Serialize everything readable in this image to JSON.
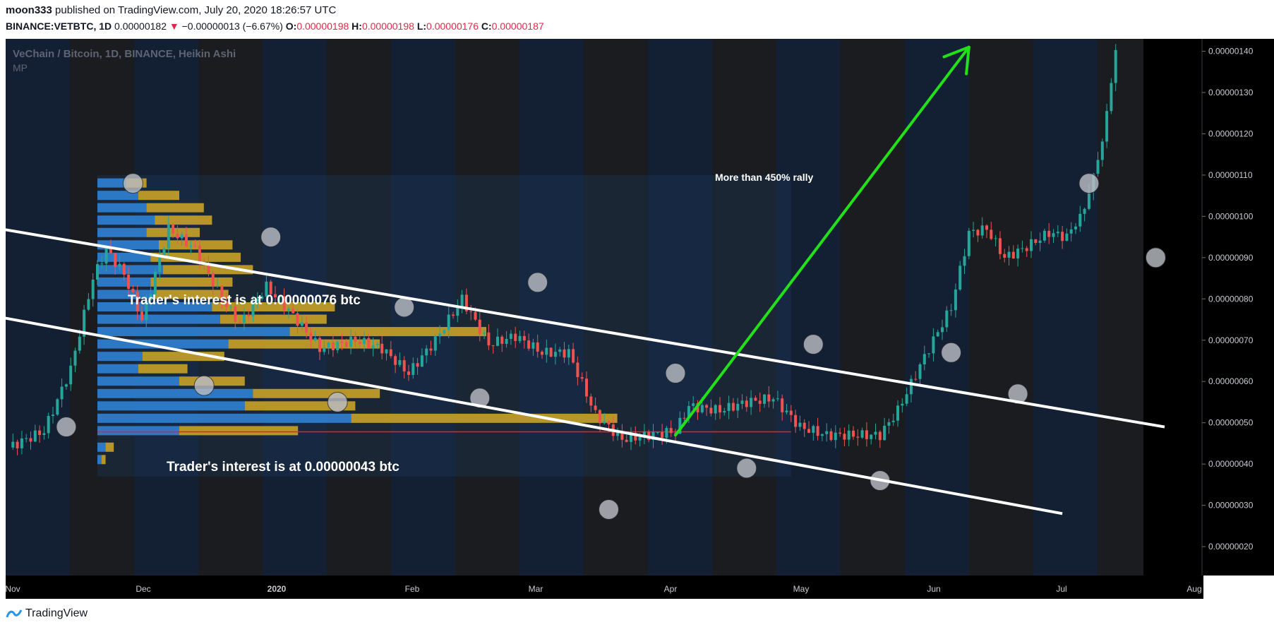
{
  "header": {
    "author": "moon333",
    "published_text": "published on TradingView.com, July 20, 2020 18:26:57 UTC",
    "symbol": "BINANCE:VETBTC, 1D",
    "last": "0.00000182",
    "change": "−0.00000013 (−6.67%)",
    "o_label": "O:",
    "o_value": "0.00000198",
    "h_label": "H:",
    "h_value": "0.00000198",
    "l_label": "L:",
    "l_value": "0.00000176",
    "c_label": "C:",
    "c_value": "0.00000187"
  },
  "chart_title": "VeChain / Bitcoin, 1D, BINANCE, Heikin Ashi",
  "indicator_label": "MP",
  "annotations": {
    "rally": "More than 450% rally",
    "upper_interest": "Trader's interest is at  0.00000076 btc",
    "lower_interest": "Trader's interest is at  0.00000043 btc"
  },
  "footer": {
    "brand": "TradingView"
  },
  "colors": {
    "up": "#26a69a",
    "down": "#ef5350",
    "arrow": "#22e01a",
    "poc_line": "#ff1a1a",
    "channel": "#ffffff",
    "bg": "#1b1c1f"
  },
  "chart_data": {
    "type": "candlestick",
    "title": "VeChain / Bitcoin, 1D, BINANCE, Heikin Ashi",
    "x_tick_labels": [
      "Nov",
      "Dec",
      "2020",
      "Feb",
      "Mar",
      "Apr",
      "May",
      "Jun",
      "Jul",
      "Aug"
    ],
    "y_tick_labels": [
      "0.00000140",
      "0.00000130",
      "0.00000120",
      "0.00000110",
      "0.00000100",
      "0.00000090",
      "0.00000080",
      "0.00000070",
      "0.00000060",
      "0.00000050",
      "0.00000040",
      "0.00000030",
      "0.00000020"
    ],
    "ylim": [
      1.3e-07,
      1.43e-06
    ],
    "price_path": [
      [
        0,
        4.4e-07
      ],
      [
        8,
        4.8e-07
      ],
      [
        14,
        6.3e-07
      ],
      [
        19,
        8.5e-07
      ],
      [
        22,
        9.2e-07
      ],
      [
        26,
        8.6e-07
      ],
      [
        30,
        7.5e-07
      ],
      [
        36,
        9.7e-07
      ],
      [
        42,
        9.2e-07
      ],
      [
        48,
        8e-07
      ],
      [
        52,
        7.4e-07
      ],
      [
        58,
        8.3e-07
      ],
      [
        64,
        7.6e-07
      ],
      [
        70,
        6.8e-07
      ],
      [
        78,
        7e-07
      ],
      [
        84,
        6.8e-07
      ],
      [
        90,
        6.2e-07
      ],
      [
        96,
        7e-07
      ],
      [
        102,
        8e-07
      ],
      [
        108,
        6.9e-07
      ],
      [
        114,
        7.1e-07
      ],
      [
        120,
        6.7e-07
      ],
      [
        126,
        6.7e-07
      ],
      [
        132,
        5.2e-07
      ],
      [
        138,
        4.6e-07
      ],
      [
        144,
        4.7e-07
      ],
      [
        150,
        4.8e-07
      ],
      [
        153,
        5.4e-07
      ],
      [
        160,
        5.3e-07
      ],
      [
        166,
        5.5e-07
      ],
      [
        172,
        5.6e-07
      ],
      [
        178,
        4.9e-07
      ],
      [
        184,
        4.7e-07
      ],
      [
        190,
        4.7e-07
      ],
      [
        196,
        4.7e-07
      ],
      [
        200,
        5.3e-07
      ],
      [
        206,
        6.6e-07
      ],
      [
        212,
        7.8e-07
      ],
      [
        216,
        9.6e-07
      ],
      [
        220,
        9.7e-07
      ],
      [
        224,
        9e-07
      ],
      [
        228,
        9.2e-07
      ],
      [
        234,
        9.6e-07
      ],
      [
        238,
        9.5e-07
      ],
      [
        242,
        1.02e-06
      ],
      [
        246,
        1.18e-06
      ],
      [
        249,
        1.4e-06
      ]
    ],
    "start_label": "Nov",
    "volume_profile_start_label": "Dec",
    "volume_profile_end_label": "Jun",
    "volume_profile_range": [
      3.7e-07,
      1.1e-06
    ],
    "volume_profile_rows": [
      [
        1.08e-06,
        0.07,
        0.05
      ],
      [
        1.05e-06,
        0.1,
        0.1
      ],
      [
        1.02e-06,
        0.12,
        0.14
      ],
      [
        9.9e-07,
        0.14,
        0.14
      ],
      [
        9.6e-07,
        0.12,
        0.13
      ],
      [
        9.3e-07,
        0.15,
        0.18
      ],
      [
        9e-07,
        0.13,
        0.22
      ],
      [
        8.7e-07,
        0.16,
        0.22
      ],
      [
        8.4e-07,
        0.13,
        0.2
      ],
      [
        8.1e-07,
        0.14,
        0.18
      ],
      [
        7.8e-07,
        0.28,
        0.3
      ],
      [
        7.5e-07,
        0.3,
        0.26
      ],
      [
        7.2e-07,
        0.47,
        0.48
      ],
      [
        6.9e-07,
        0.32,
        0.37
      ],
      [
        6.6e-07,
        0.11,
        0.2
      ],
      [
        6.3e-07,
        0.1,
        0.12
      ],
      [
        6e-07,
        0.2,
        0.16
      ],
      [
        5.7e-07,
        0.38,
        0.31
      ],
      [
        5.4e-07,
        0.36,
        0.27
      ],
      [
        5.1e-07,
        0.62,
        0.65
      ],
      [
        4.8e-07,
        0.2,
        0.29
      ],
      [
        4.4e-07,
        0.02,
        0.02
      ],
      [
        4.1e-07,
        0.01,
        0.01
      ]
    ],
    "poc_value": 4.78e-07,
    "channel_upper": {
      "from": [
        -2,
        9.7e-07
      ],
      "to": [
        260,
        4.9e-07
      ]
    },
    "channel_lower": {
      "from": [
        -4,
        7.6e-07
      ],
      "to": [
        237,
        2.8e-07
      ]
    },
    "rally_arrow": {
      "from": [
        150,
        4.7e-07
      ],
      "to": [
        216,
        1.41e-06
      ]
    },
    "markers": [
      [
        13,
        4.9e-07
      ],
      [
        28,
        1.08e-06
      ],
      [
        44,
        5.9e-07
      ],
      [
        59,
        9.5e-07
      ],
      [
        74,
        5.5e-07
      ],
      [
        89,
        7.8e-07
      ],
      [
        106,
        5.6e-07
      ],
      [
        119,
        8.4e-07
      ],
      [
        135,
        2.9e-07
      ],
      [
        150,
        6.2e-07
      ],
      [
        166,
        3.9e-07
      ],
      [
        181,
        6.9e-07
      ],
      [
        196,
        3.6e-07
      ],
      [
        212,
        6.7e-07
      ],
      [
        227,
        5.7e-07
      ],
      [
        243,
        1.08e-06
      ],
      [
        258,
        9e-07
      ]
    ]
  }
}
